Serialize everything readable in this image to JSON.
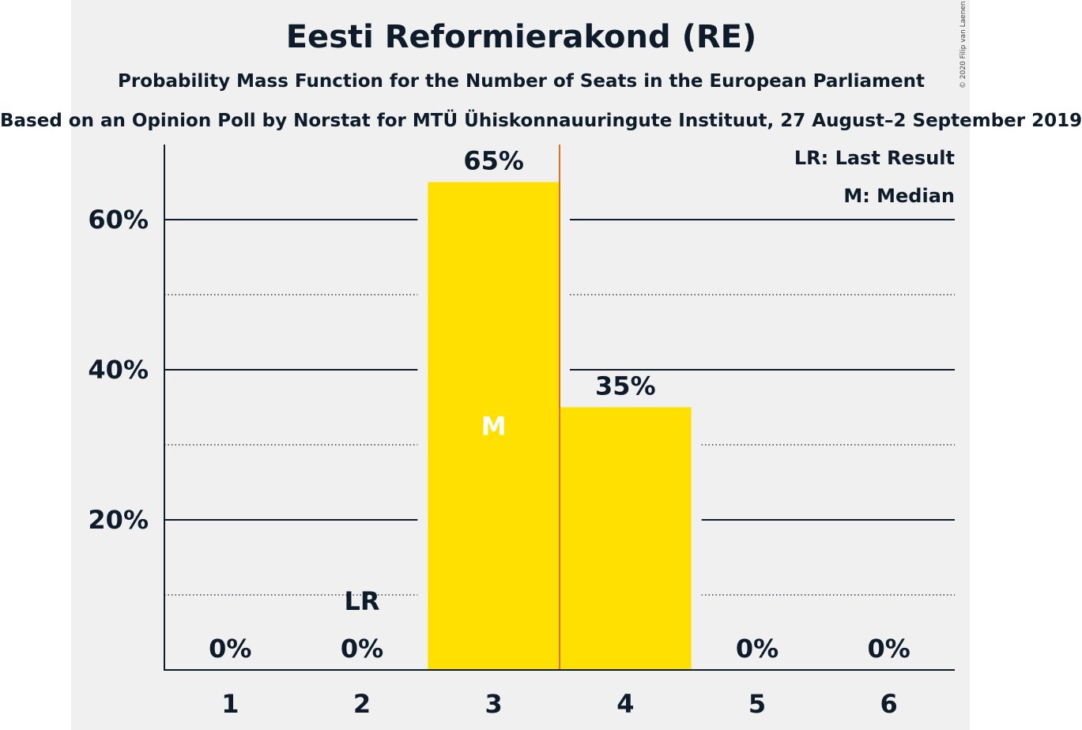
{
  "title": "Eesti Reformierakond (RE)",
  "subtitle": "Probability Mass Function for the Number of Seats in the European Parliament",
  "subtitle2": "Based on an Opinion Poll by Norstat for MTÜ Ühiskonnauuringute Instituut, 27 August–2 September 2019",
  "copyright": "© 2020 Filip van Laenen",
  "legend": {
    "lr": "LR: Last Result",
    "m": "M: Median"
  },
  "colors": {
    "bar": "#ffe000",
    "median_line": "#e0701a",
    "text": "#0d1b2a",
    "median_label": "#ffffff"
  },
  "chart_data": {
    "type": "bar",
    "categories": [
      "1",
      "2",
      "3",
      "4",
      "5",
      "6"
    ],
    "values": [
      0,
      0,
      65,
      35,
      0,
      0
    ],
    "value_labels": [
      "0%",
      "0%",
      "65%",
      "35%",
      "0%",
      "0%"
    ],
    "ylim": [
      0,
      70
    ],
    "yticks": [
      20,
      40,
      60
    ],
    "ytick_labels": [
      "20%",
      "40%",
      "60%"
    ],
    "minor_gridlines": [
      10,
      30,
      50
    ],
    "last_result": {
      "category": "2",
      "label": "LR"
    },
    "median": {
      "category": "3",
      "label": "M"
    },
    "median_line_x": 3.5,
    "grid": true,
    "legend_position": "top-right"
  }
}
